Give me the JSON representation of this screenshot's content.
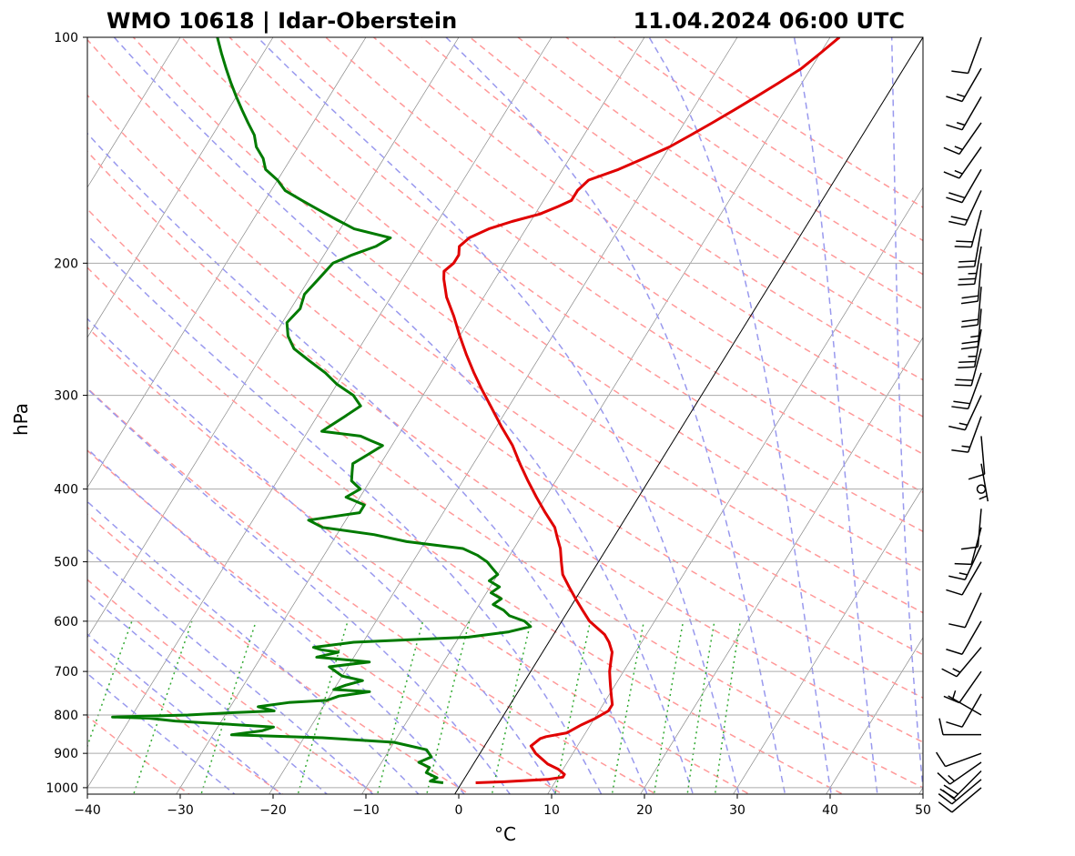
{
  "header": {
    "station": "WMO 10618 | Idar-Oberstein",
    "datetime": "11.04.2024 06:00 UTC"
  },
  "chart_data": {
    "type": "skew-t",
    "xlabel": "°C",
    "ylabel": "hPa",
    "xlim": [
      -40,
      50
    ],
    "ylim": [
      1020,
      100
    ],
    "pressure_scale": "log",
    "xticks": [
      "−40",
      "−30",
      "−20",
      "−10",
      "0",
      "10",
      "20",
      "30",
      "40",
      "50"
    ],
    "xtick_values": [
      -40,
      -30,
      -20,
      -10,
      0,
      10,
      20,
      30,
      40,
      50
    ],
    "yticks": [
      "100",
      "200",
      "300",
      "400",
      "500",
      "600",
      "700",
      "800",
      "900",
      "1000"
    ],
    "ytick_values": [
      100,
      200,
      300,
      400,
      500,
      600,
      700,
      800,
      900,
      1000
    ],
    "colors": {
      "temperature": "#e00000",
      "dewpoint": "#007a00",
      "dry_adiabat": "#ff9999",
      "moist_adiabat": "#9999ee",
      "mixing_ratio": "#33aa33",
      "isotherm": "#888888",
      "grid": "#aaaaaa"
    },
    "temperature": {
      "p": [
        985,
        982,
        975,
        968,
        960,
        945,
        930,
        900,
        880,
        860,
        855,
        845,
        825,
        810,
        800,
        790,
        775,
        760,
        745,
        730,
        715,
        700,
        680,
        660,
        640,
        625,
        610,
        600,
        580,
        560,
        540,
        520,
        500,
        480,
        465,
        450,
        430,
        410,
        390,
        370,
        350,
        330,
        310,
        295,
        280,
        265,
        250,
        235,
        222,
        210,
        205,
        200,
        195,
        190,
        185,
        180,
        176,
        172,
        168,
        165,
        160,
        155,
        150,
        145,
        140,
        135,
        130,
        125,
        120,
        115,
        110,
        105,
        100
      ],
      "t": [
        1.5,
        4.5,
        9.0,
        10.5,
        10.5,
        9.5,
        8.0,
        6.0,
        5.0,
        5.5,
        6.0,
        8.0,
        9.0,
        10.0,
        10.5,
        11.0,
        11.0,
        10.5,
        10.0,
        9.5,
        9.0,
        8.5,
        8.0,
        7.5,
        6.5,
        5.5,
        4.0,
        3.0,
        1.5,
        0.0,
        -1.5,
        -3.0,
        -4.0,
        -5.0,
        -6.0,
        -7.0,
        -9.0,
        -11.0,
        -13.0,
        -15.0,
        -17.0,
        -19.5,
        -22.0,
        -24.0,
        -26.0,
        -28.0,
        -30.0,
        -32.0,
        -34.0,
        -35.5,
        -36.0,
        -35.5,
        -35.5,
        -36.0,
        -35.5,
        -34.0,
        -32.0,
        -29.5,
        -28.0,
        -27.0,
        -27.0,
        -26.5,
        -24.0,
        -22.0,
        -20.0,
        -18.5,
        -17.0,
        -15.5,
        -14.0,
        -12.5,
        -11.0,
        -10.0,
        -9.0
      ]
    },
    "dewpoint": {
      "p": [
        985,
        980,
        970,
        955,
        940,
        925,
        910,
        890,
        870,
        858,
        850,
        840,
        830,
        815,
        808,
        805,
        800,
        795,
        790,
        780,
        770,
        765,
        755,
        745,
        740,
        730,
        720,
        710,
        700,
        690,
        680,
        670,
        660,
        655,
        650,
        640,
        630,
        620,
        610,
        600,
        590,
        580,
        570,
        560,
        550,
        540,
        530,
        520,
        510,
        500,
        490,
        480,
        470,
        460,
        450,
        440,
        430,
        420,
        410,
        400,
        390,
        380,
        370,
        360,
        350,
        345,
        340,
        335,
        330,
        320,
        310,
        300,
        290,
        280,
        270,
        260,
        250,
        240,
        230,
        220,
        210,
        200,
        195,
        190,
        185,
        180,
        175,
        170,
        165,
        160,
        155,
        150,
        145,
        140,
        135,
        130,
        125,
        120,
        115,
        110,
        105,
        100
      ],
      "td": [
        -2.0,
        -3.5,
        -3.0,
        -4.5,
        -4.5,
        -6.0,
        -5.0,
        -6.0,
        -10.0,
        -18.0,
        -28.0,
        -25.0,
        -24.0,
        -35.0,
        -38.0,
        -42.0,
        -34.0,
        -30.0,
        -25.0,
        -27.0,
        -24.0,
        -20.0,
        -19.0,
        -16.0,
        -20.0,
        -19.0,
        -17.5,
        -20.0,
        -21.0,
        -22.0,
        -18.0,
        -24.0,
        -22.0,
        -24.0,
        -25.0,
        -21.0,
        -9.0,
        -5.0,
        -3.0,
        -4.0,
        -6.0,
        -7.0,
        -8.5,
        -8.0,
        -9.5,
        -9.0,
        -10.5,
        -10.0,
        -11.0,
        -12.0,
        -13.5,
        -15.5,
        -22.0,
        -26.0,
        -32.0,
        -34.0,
        -29.0,
        -29.0,
        -31.5,
        -30.5,
        -32.0,
        -32.5,
        -33.0,
        -32.0,
        -31.0,
        -32.5,
        -34.0,
        -38.5,
        -38.0,
        -37.0,
        -36.0,
        -37.5,
        -40.0,
        -42.0,
        -44.5,
        -47.0,
        -48.5,
        -49.5,
        -49.0,
        -49.5,
        -49.0,
        -48.5,
        -47.0,
        -45.0,
        -44.0,
        -48.5,
        -51.0,
        -53.5,
        -56.0,
        -58.5,
        -60.0,
        -62.0,
        -63.0,
        -64.5,
        -65.5,
        -67.0,
        -68.5,
        -70.0,
        -71.5,
        -73.0,
        -74.5,
        -76.0
      ]
    },
    "winds": [
      {
        "p": 1000,
        "spd": 10,
        "dir": 230
      },
      {
        "p": 975,
        "spd": 20,
        "dir": 230
      },
      {
        "p": 950,
        "spd": 20,
        "dir": 225
      },
      {
        "p": 925,
        "spd": 15,
        "dir": 235
      },
      {
        "p": 900,
        "spd": 10,
        "dir": 250
      },
      {
        "p": 850,
        "spd": 10,
        "dir": 270
      },
      {
        "p": 800,
        "spd": 5,
        "dir": 300
      },
      {
        "p": 750,
        "spd": 10,
        "dir": 210
      },
      {
        "p": 700,
        "spd": 10,
        "dir": 215
      },
      {
        "p": 650,
        "spd": 15,
        "dir": 220
      },
      {
        "p": 600,
        "spd": 10,
        "dir": 210
      },
      {
        "p": 550,
        "spd": 10,
        "dir": 205
      },
      {
        "p": 500,
        "spd": 10,
        "dir": 210
      },
      {
        "p": 475,
        "spd": 15,
        "dir": 205
      },
      {
        "p": 450,
        "spd": 10,
        "dir": 195
      },
      {
        "p": 425,
        "spd": 10,
        "dir": 185
      },
      {
        "p": 400,
        "spd": 0,
        "dir": 0
      },
      {
        "p": 370,
        "spd": 5,
        "dir": 170
      },
      {
        "p": 340,
        "spd": 10,
        "dir": 175
      },
      {
        "p": 320,
        "spd": 15,
        "dir": 200
      },
      {
        "p": 300,
        "spd": 15,
        "dir": 205
      },
      {
        "p": 280,
        "spd": 20,
        "dir": 200
      },
      {
        "p": 260,
        "spd": 20,
        "dir": 195
      },
      {
        "p": 245,
        "spd": 25,
        "dir": 190
      },
      {
        "p": 230,
        "spd": 25,
        "dir": 185
      },
      {
        "p": 215,
        "spd": 20,
        "dir": 185
      },
      {
        "p": 200,
        "spd": 20,
        "dir": 185
      },
      {
        "p": 190,
        "spd": 25,
        "dir": 190
      },
      {
        "p": 180,
        "spd": 20,
        "dir": 190
      },
      {
        "p": 170,
        "spd": 20,
        "dir": 195
      },
      {
        "p": 160,
        "spd": 20,
        "dir": 205
      },
      {
        "p": 150,
        "spd": 20,
        "dir": 210
      },
      {
        "p": 140,
        "spd": 15,
        "dir": 215
      },
      {
        "p": 130,
        "spd": 15,
        "dir": 215
      },
      {
        "p": 120,
        "spd": 15,
        "dir": 210
      },
      {
        "p": 110,
        "spd": 15,
        "dir": 210
      },
      {
        "p": 100,
        "spd": 10,
        "dir": 200
      }
    ]
  }
}
